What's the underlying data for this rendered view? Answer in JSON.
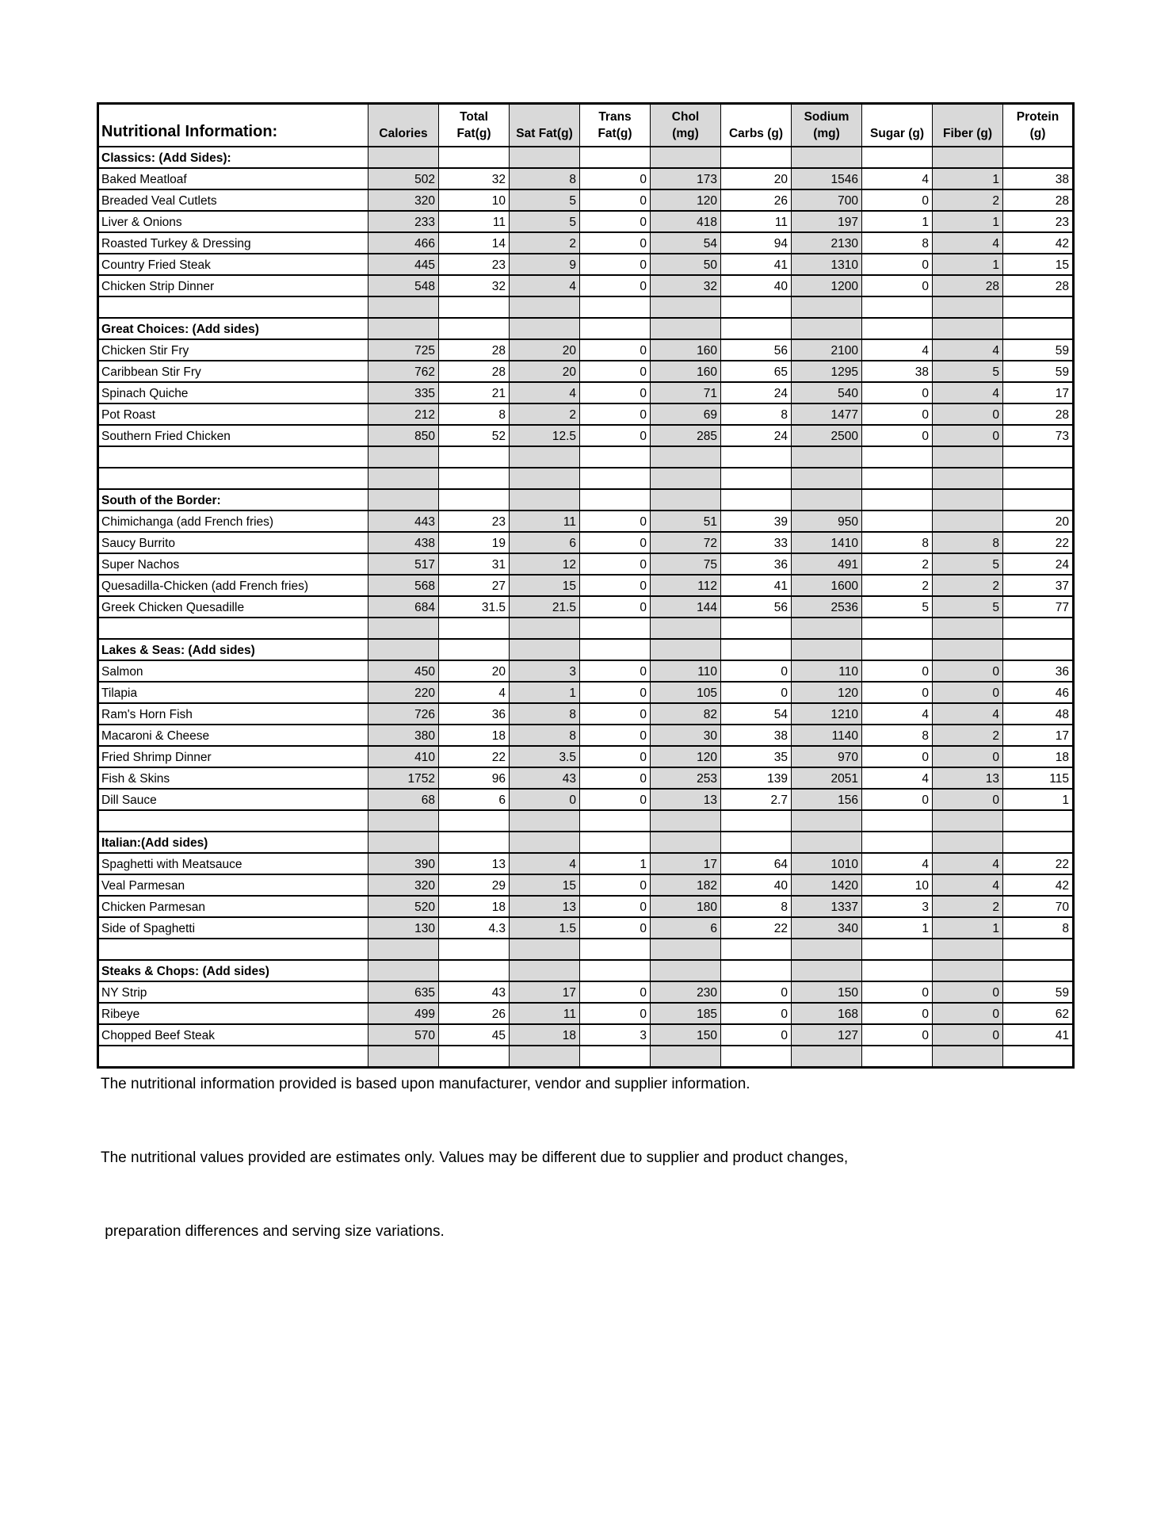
{
  "table": {
    "title": "Nutritional Information:",
    "columns": [
      {
        "key": "calories",
        "label": "Calories",
        "shaded": true
      },
      {
        "key": "total-fat",
        "label": "Total\nFat(g)",
        "shaded": false
      },
      {
        "key": "sat-fat",
        "label": "Sat Fat(g)",
        "shaded": true
      },
      {
        "key": "trans-fat",
        "label": "Trans\nFat(g)",
        "shaded": false
      },
      {
        "key": "chol",
        "label": "Chol\n(mg)",
        "shaded": true
      },
      {
        "key": "carbs",
        "label": "Carbs (g)",
        "shaded": false
      },
      {
        "key": "sodium",
        "label": "Sodium\n(mg)",
        "shaded": true
      },
      {
        "key": "sugar",
        "label": "Sugar (g)",
        "shaded": false
      },
      {
        "key": "fiber",
        "label": "Fiber (g)",
        "shaded": true
      },
      {
        "key": "protein",
        "label": "Protein\n(g)",
        "shaded": false
      }
    ],
    "shade_color": "#D9D9D9",
    "sections": [
      {
        "header": "Classics: (Add Sides):",
        "blank_rows_after": 1,
        "rows": [
          {
            "name": "Baked Meatloaf",
            "values": [
              "502",
              "32",
              "8",
              "0",
              "173",
              "20",
              "1546",
              "4",
              "1",
              "38"
            ]
          },
          {
            "name": "Breaded Veal Cutlets",
            "values": [
              "320",
              "10",
              "5",
              "0",
              "120",
              "26",
              "700",
              "0",
              "2",
              "28"
            ]
          },
          {
            "name": "Liver & Onions",
            "values": [
              "233",
              "11",
              "5",
              "0",
              "418",
              "11",
              "197",
              "1",
              "1",
              "23"
            ]
          },
          {
            "name": "Roasted Turkey & Dressing",
            "values": [
              "466",
              "14",
              "2",
              "0",
              "54",
              "94",
              "2130",
              "8",
              "4",
              "42"
            ]
          },
          {
            "name": "Country Fried Steak",
            "values": [
              "445",
              "23",
              "9",
              "0",
              "50",
              "41",
              "1310",
              "0",
              "1",
              "15"
            ]
          },
          {
            "name": "Chicken Strip Dinner",
            "values": [
              "548",
              "32",
              "4",
              "0",
              "32",
              "40",
              "1200",
              "0",
              "28",
              "28"
            ]
          }
        ]
      },
      {
        "header": "Great Choices: (Add sides)",
        "blank_rows_after": 2,
        "rows": [
          {
            "name": "Chicken Stir Fry",
            "values": [
              "725",
              "28",
              "20",
              "0",
              "160",
              "56",
              "2100",
              "4",
              "4",
              "59"
            ]
          },
          {
            "name": "Caribbean Stir Fry",
            "values": [
              "762",
              "28",
              "20",
              "0",
              "160",
              "65",
              "1295",
              "38",
              "5",
              "59"
            ]
          },
          {
            "name": "Spinach Quiche",
            "values": [
              "335",
              "21",
              "4",
              "0",
              "71",
              "24",
              "540",
              "0",
              "4",
              "17"
            ]
          },
          {
            "name": "Pot Roast",
            "values": [
              "212",
              "8",
              "2",
              "0",
              "69",
              "8",
              "1477",
              "0",
              "0",
              "28"
            ]
          },
          {
            "name": "Southern Fried Chicken",
            "values": [
              "850",
              "52",
              "12.5",
              "0",
              "285",
              "24",
              "2500",
              "0",
              "0",
              "73"
            ]
          }
        ]
      },
      {
        "header": "South of the Border:",
        "blank_rows_after": 1,
        "rows": [
          {
            "name": "Chimichanga (add French fries)",
            "values": [
              "443",
              "23",
              "11",
              "0",
              "51",
              "39",
              "950",
              "",
              "",
              "20"
            ]
          },
          {
            "name": "Saucy Burrito",
            "values": [
              "438",
              "19",
              "6",
              "0",
              "72",
              "33",
              "1410",
              "8",
              "8",
              "22"
            ]
          },
          {
            "name": "Super Nachos",
            "values": [
              "517",
              "31",
              "12",
              "0",
              "75",
              "36",
              "491",
              "2",
              "5",
              "24"
            ]
          },
          {
            "name": "Quesadilla-Chicken (add French fries)",
            "values": [
              "568",
              "27",
              "15",
              "0",
              "112",
              "41",
              "1600",
              "2",
              "2",
              "37"
            ]
          },
          {
            "name": "Greek Chicken Quesadille",
            "values": [
              "684",
              "31.5",
              "21.5",
              "0",
              "144",
              "56",
              "2536",
              "5",
              "5",
              "77"
            ]
          }
        ]
      },
      {
        "header": "Lakes & Seas: (Add sides)",
        "blank_rows_after": 1,
        "rows": [
          {
            "name": "Salmon",
            "values": [
              "450",
              "20",
              "3",
              "0",
              "110",
              "0",
              "110",
              "0",
              "0",
              "36"
            ]
          },
          {
            "name": "Tilapia",
            "values": [
              "220",
              "4",
              "1",
              "0",
              "105",
              "0",
              "120",
              "0",
              "0",
              "46"
            ]
          },
          {
            "name": "Ram's Horn Fish",
            "values": [
              "726",
              "36",
              "8",
              "0",
              "82",
              "54",
              "1210",
              "4",
              "4",
              "48"
            ]
          },
          {
            "name": "Macaroni & Cheese",
            "values": [
              "380",
              "18",
              "8",
              "0",
              "30",
              "38",
              "1140",
              "8",
              "2",
              "17"
            ]
          },
          {
            "name": "Fried Shrimp Dinner",
            "values": [
              "410",
              "22",
              "3.5",
              "0",
              "120",
              "35",
              "970",
              "0",
              "0",
              "18"
            ]
          },
          {
            "name": "Fish & Skins",
            "values": [
              "1752",
              "96",
              "43",
              "0",
              "253",
              "139",
              "2051",
              "4",
              "13",
              "115"
            ]
          },
          {
            "name": "Dill Sauce",
            "values": [
              "68",
              "6",
              "0",
              "0",
              "13",
              "2.7",
              "156",
              "0",
              "0",
              "1"
            ]
          }
        ]
      },
      {
        "header": "Italian:(Add sides)",
        "blank_rows_after": 1,
        "rows": [
          {
            "name": "Spaghetti with Meatsauce",
            "values": [
              "390",
              "13",
              "4",
              "1",
              "17",
              "64",
              "1010",
              "4",
              "4",
              "22"
            ]
          },
          {
            "name": "Veal Parmesan",
            "values": [
              "320",
              "29",
              "15",
              "0",
              "182",
              "40",
              "1420",
              "10",
              "4",
              "42"
            ]
          },
          {
            "name": "Chicken Parmesan",
            "values": [
              "520",
              "18",
              "13",
              "0",
              "180",
              "8",
              "1337",
              "3",
              "2",
              "70"
            ]
          },
          {
            "name": "Side of Spaghetti",
            "values": [
              "130",
              "4.3",
              "1.5",
              "0",
              "6",
              "22",
              "340",
              "1",
              "1",
              "8"
            ]
          }
        ]
      },
      {
        "header": "Steaks & Chops: (Add sides)",
        "blank_rows_after": 1,
        "rows": [
          {
            "name": "NY Strip",
            "values": [
              "635",
              "43",
              "17",
              "0",
              "230",
              "0",
              "150",
              "0",
              "0",
              "59"
            ]
          },
          {
            "name": "Ribeye",
            "values": [
              "499",
              "26",
              "11",
              "0",
              "185",
              "0",
              "168",
              "0",
              "0",
              "62"
            ]
          },
          {
            "name": "Chopped Beef Steak",
            "values": [
              "570",
              "45",
              "18",
              "3",
              "150",
              "0",
              "127",
              "0",
              "0",
              "41"
            ]
          }
        ]
      }
    ]
  },
  "footnote": {
    "lines": [
      "The nutritional information provided is based upon manufacturer, vendor and supplier information.",
      "The nutritional values provided are estimates only. Values may be different due to supplier and product changes,",
      " preparation differences and serving size variations."
    ]
  }
}
